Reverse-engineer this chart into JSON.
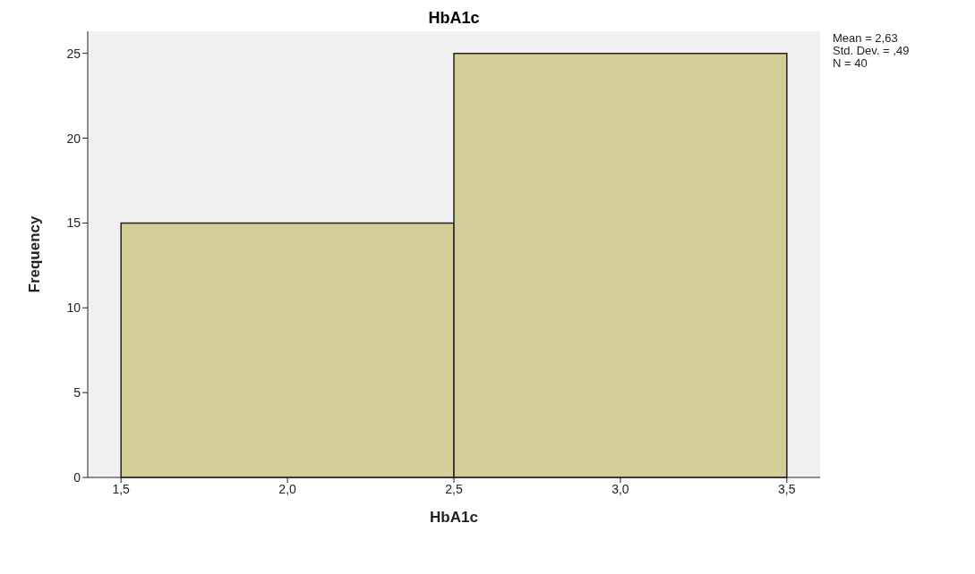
{
  "chart_data": {
    "type": "histogram",
    "title": "HbA1c",
    "xlabel": "HbA1c",
    "ylabel": "Frequency",
    "bins": [
      1.5,
      2.5,
      3.5
    ],
    "values": [
      15,
      25
    ],
    "color": "#d3ce98",
    "xlim": [
      1.4,
      3.6
    ],
    "xticks": [
      {
        "value": 1.5,
        "label": "1,5"
      },
      {
        "value": 2.0,
        "label": "2,0"
      },
      {
        "value": 2.5,
        "label": "2,5"
      },
      {
        "value": 3.0,
        "label": "3,0"
      },
      {
        "value": 3.5,
        "label": "3,5"
      }
    ],
    "ylim": [
      0,
      26.3
    ],
    "yticks": [
      0,
      5,
      10,
      15,
      20,
      25
    ],
    "annotations": [
      "Mean = 2,63",
      "Std. Dev. = ,49",
      "N = 40"
    ]
  }
}
